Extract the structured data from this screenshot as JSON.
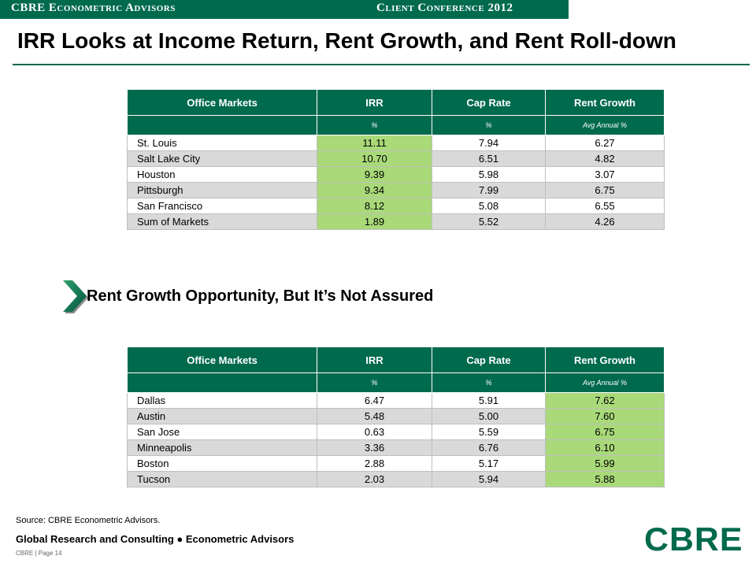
{
  "header": {
    "left": "CBRE Econometric Advisors",
    "right": "Client Conference 2012"
  },
  "title": "IRR Looks at Income Return, Rent Growth, and Rent Roll-down",
  "colors": {
    "brand_green": "#006a4d",
    "highlight_green": "#a9d979",
    "row_gray": "#d9d9d9"
  },
  "table1": {
    "headers": [
      "Office Markets",
      "IRR",
      "Cap Rate",
      "Rent Growth"
    ],
    "units": [
      "",
      "%",
      "%",
      "Avg Annual %"
    ],
    "rows": [
      [
        "St. Louis",
        "11.11",
        "7.94",
        "6.27"
      ],
      [
        "Salt Lake City",
        "10.70",
        "6.51",
        "4.82"
      ],
      [
        "Houston",
        "9.39",
        "5.98",
        "3.07"
      ],
      [
        "Pittsburgh",
        "9.34",
        "7.99",
        "6.75"
      ],
      [
        "San Francisco",
        "8.12",
        "5.08",
        "6.55"
      ],
      [
        "Sum of Markets",
        "1.89",
        "5.52",
        "4.26"
      ]
    ]
  },
  "callout": {
    "icon": "chevron-right-icon",
    "text": "Rent Growth Opportunity, But It’s Not Assured"
  },
  "table2": {
    "headers": [
      "Office Markets",
      "IRR",
      "Cap Rate",
      "Rent Growth"
    ],
    "units": [
      "",
      "%",
      "%",
      "Avg Annual %"
    ],
    "rows": [
      [
        "Dallas",
        "6.47",
        "5.91",
        "7.62"
      ],
      [
        "Austin",
        "5.48",
        "5.00",
        "7.60"
      ],
      [
        "San Jose",
        "0.63",
        "5.59",
        "6.75"
      ],
      [
        "Minneapolis",
        "3.36",
        "6.76",
        "6.10"
      ],
      [
        "Boston",
        "2.88",
        "5.17",
        "5.99"
      ],
      [
        "Tucson",
        "2.03",
        "5.94",
        "5.88"
      ]
    ]
  },
  "footer": {
    "source": "Source: CBRE Econometric Advisors.",
    "main": "Global Research and Consulting ● Econometric Advisors",
    "page": "CBRE | Page 14",
    "logo": "CBRE"
  }
}
